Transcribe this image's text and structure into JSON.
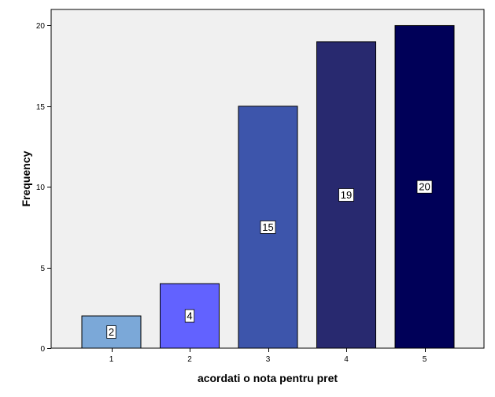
{
  "chart_data": {
    "type": "bar",
    "categories": [
      "1",
      "2",
      "3",
      "4",
      "5"
    ],
    "values": [
      2,
      4,
      15,
      19,
      20
    ],
    "data_labels": [
      "2",
      "4",
      "15",
      "19",
      "20"
    ],
    "bar_colors": [
      "#7ba8d8",
      "#6262ff",
      "#3d55ab",
      "#28296f",
      "#000058"
    ],
    "title": "",
    "xlabel": "acordati o nota pentru pret",
    "ylabel": "Frequency",
    "yticks": [
      0,
      5,
      10,
      15,
      20
    ],
    "ytick_labels": [
      "0",
      "5",
      "10",
      "15",
      "20"
    ],
    "ylim": [
      0,
      21
    ],
    "grid": false,
    "plot_background": "#f0f0f0"
  }
}
